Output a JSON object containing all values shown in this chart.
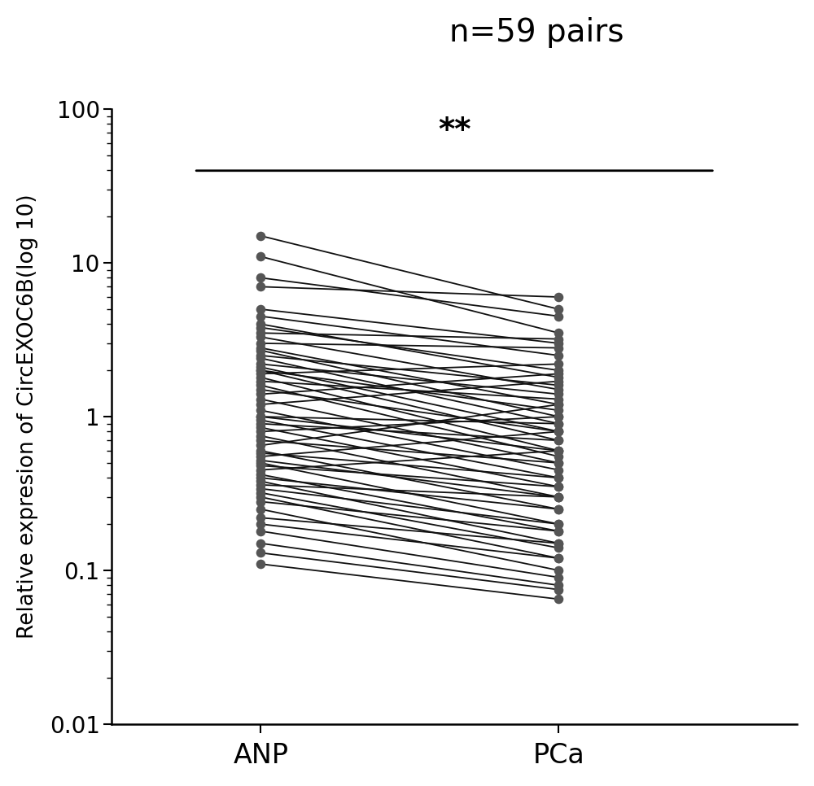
{
  "title": "n=59 pairs",
  "significance": "**",
  "ylabel": "Relative expresion of CircEXOC6B(log 10)",
  "xlabel_left": "ANP",
  "xlabel_right": "PCa",
  "ylim_log": [
    0.01,
    100
  ],
  "yticks": [
    0.01,
    0.1,
    1,
    10,
    100
  ],
  "point_color": "#555555",
  "line_color": "#111111",
  "point_size": 70,
  "line_width": 1.3,
  "anp_values": [
    15.0,
    11.0,
    8.0,
    7.0,
    5.0,
    4.5,
    4.0,
    3.8,
    3.5,
    3.3,
    3.0,
    2.8,
    2.7,
    2.5,
    2.4,
    2.2,
    2.1,
    2.0,
    2.0,
    1.9,
    1.8,
    1.7,
    1.6,
    1.5,
    1.4,
    1.3,
    1.2,
    1.1,
    1.0,
    1.0,
    0.95,
    0.9,
    0.85,
    0.8,
    0.75,
    0.7,
    0.65,
    0.6,
    0.58,
    0.55,
    0.52,
    0.5,
    0.48,
    0.45,
    0.42,
    0.4,
    0.38,
    0.36,
    0.34,
    0.32,
    0.3,
    0.28,
    0.25,
    0.22,
    0.2,
    0.18,
    0.15,
    0.13,
    0.11
  ],
  "pca_values": [
    5.0,
    3.5,
    4.5,
    6.0,
    3.0,
    2.5,
    1.8,
    2.0,
    3.2,
    1.5,
    2.8,
    1.2,
    1.0,
    1.6,
    0.9,
    1.4,
    0.8,
    1.1,
    0.7,
    2.2,
    0.6,
    1.3,
    0.55,
    0.8,
    1.9,
    0.5,
    1.7,
    0.45,
    0.9,
    0.6,
    0.4,
    0.7,
    0.35,
    1.0,
    0.3,
    0.5,
    1.2,
    0.25,
    0.4,
    0.8,
    0.3,
    0.2,
    0.35,
    0.6,
    0.18,
    0.25,
    0.15,
    0.3,
    0.2,
    0.14,
    0.12,
    0.18,
    0.1,
    0.15,
    0.12,
    0.09,
    0.08,
    0.075,
    0.065
  ],
  "background_color": "#ffffff",
  "figsize": [
    10.0,
    9.66
  ]
}
